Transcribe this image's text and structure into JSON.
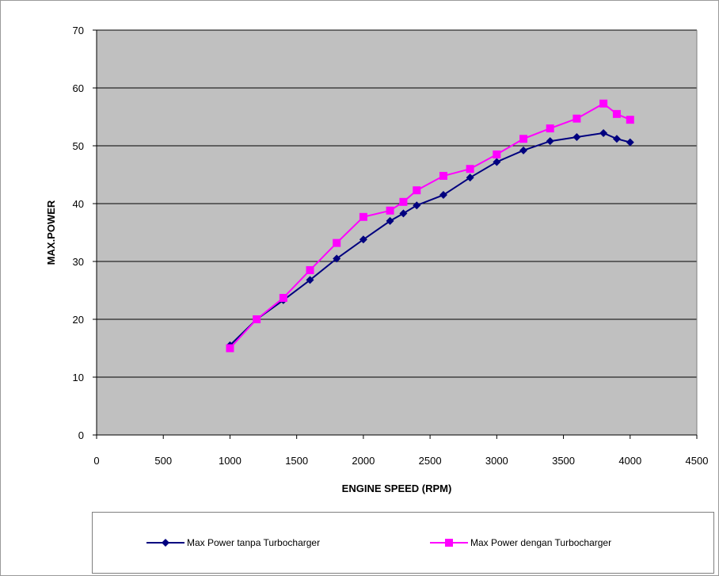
{
  "chart_data": {
    "type": "line",
    "xlabel": "ENGINE SPEED (RPM)",
    "ylabel": "MAX.POWER",
    "xlim": [
      0,
      4500
    ],
    "ylim": [
      0,
      70
    ],
    "xticks": [
      0,
      500,
      1000,
      1500,
      2000,
      2500,
      3000,
      3500,
      4000,
      4500
    ],
    "yticks": [
      0,
      10,
      20,
      30,
      40,
      50,
      60,
      70
    ],
    "grid": "horizontal",
    "legend_position": "bottom",
    "background_color": "#c0c0c0",
    "series": [
      {
        "name": "Max Power tanpa Turbocharger",
        "color": "#00007f",
        "marker": "diamond",
        "x": [
          1000,
          1200,
          1400,
          1600,
          1800,
          2000,
          2200,
          2300,
          2400,
          2600,
          2800,
          3000,
          3200,
          3400,
          3600,
          3800,
          3900,
          4000
        ],
        "y": [
          15.5,
          20.0,
          23.3,
          26.8,
          30.5,
          33.8,
          37.0,
          38.3,
          39.7,
          41.5,
          44.5,
          47.2,
          49.2,
          50.8,
          51.5,
          52.2,
          51.2,
          50.6
        ]
      },
      {
        "name": "Max Power dengan Turbocharger",
        "color": "#ff00ff",
        "marker": "square",
        "x": [
          1000,
          1200,
          1400,
          1600,
          1800,
          2000,
          2200,
          2300,
          2400,
          2600,
          2800,
          3000,
          3200,
          3400,
          3600,
          3800,
          3900,
          4000
        ],
        "y": [
          15.0,
          20.0,
          23.7,
          28.5,
          33.2,
          37.7,
          38.8,
          40.3,
          42.3,
          44.8,
          46.0,
          48.5,
          51.2,
          53.0,
          54.7,
          57.3,
          55.5,
          54.5
        ]
      }
    ]
  }
}
